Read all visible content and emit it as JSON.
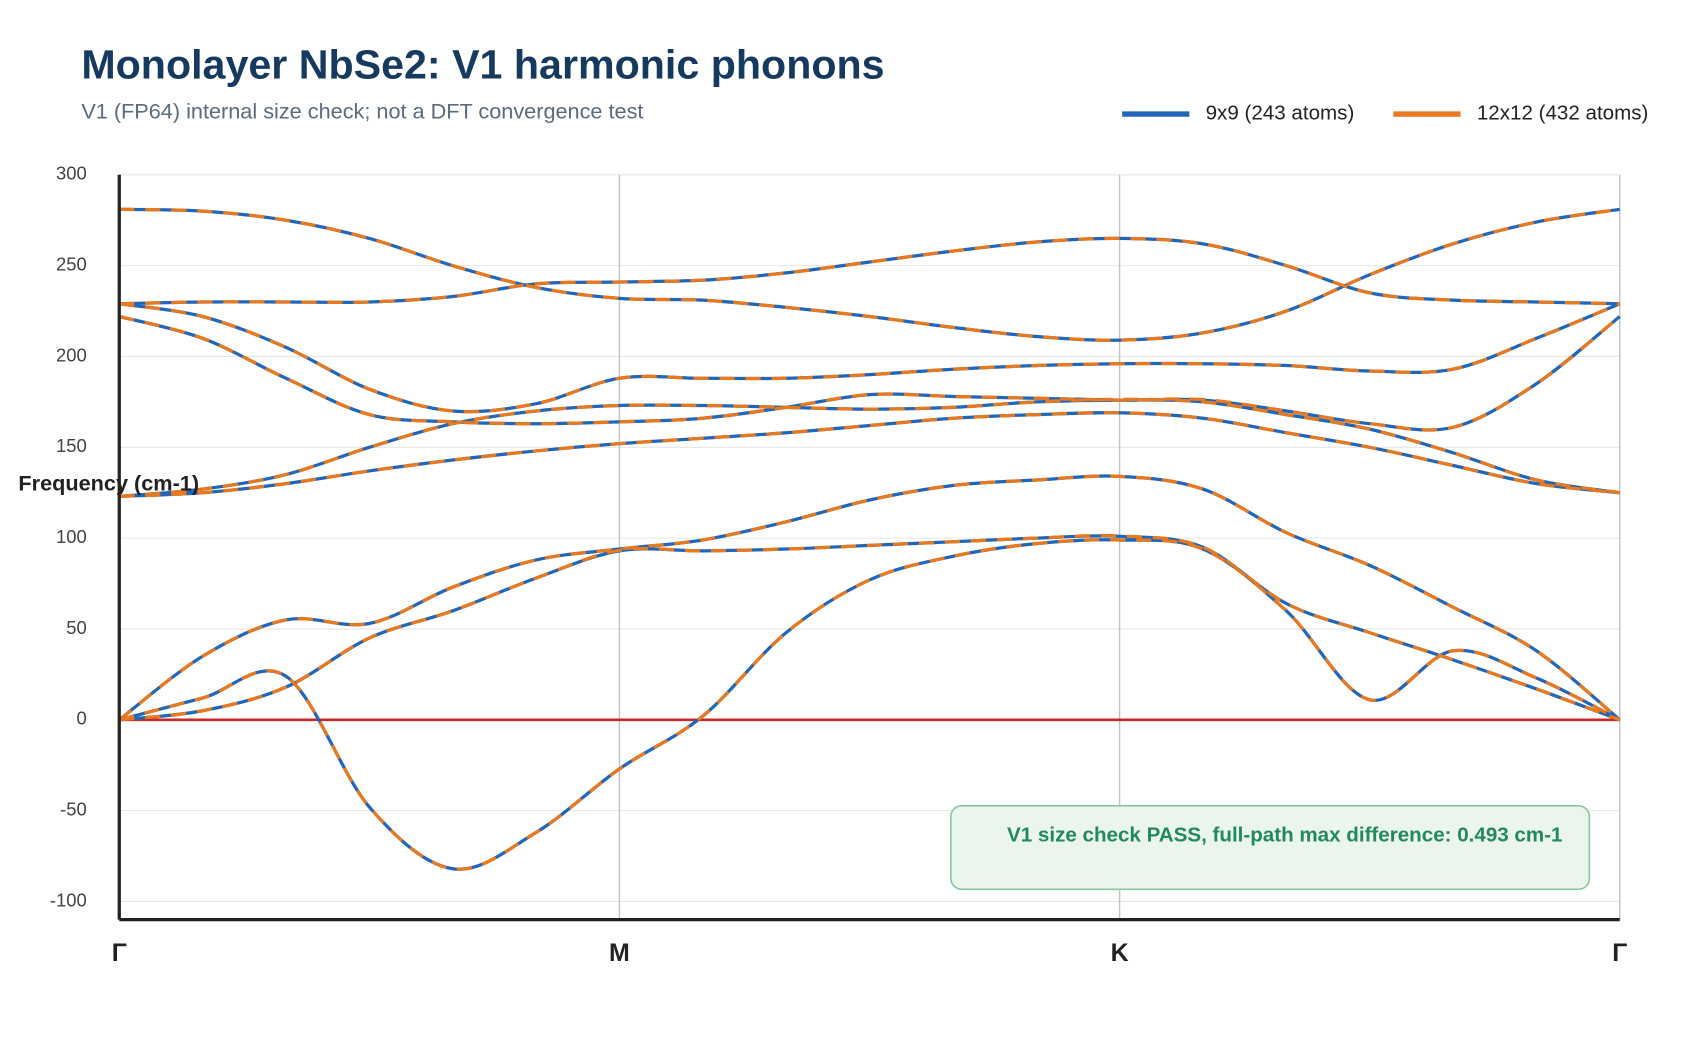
{
  "chart_data": {
    "type": "line",
    "title": "Monolayer NbSe2: V1 harmonic phonons",
    "subtitle": "V1 (FP64) internal size check; not a DFT convergence test",
    "y_label": "Frequency (cm-1)",
    "annotation": "V1 size check PASS, full-path max difference: 0.493 cm-1",
    "x": [
      0,
      1,
      2,
      3,
      4,
      5,
      6,
      7,
      8,
      9,
      10,
      11,
      12,
      13,
      14,
      15,
      16,
      17,
      18
    ],
    "xlim": [
      0,
      18
    ],
    "xticks": [
      {
        "value": 0,
        "label": "Γ"
      },
      {
        "value": 6,
        "label": "M"
      },
      {
        "value": 12,
        "label": "K"
      },
      {
        "value": 18,
        "label": "Γ"
      }
    ],
    "ylim": [
      -110,
      300
    ],
    "yticks": [
      -100,
      -50,
      0,
      50,
      100,
      150,
      200,
      250,
      300
    ],
    "grid": true,
    "legend": "top-right",
    "series": [
      {
        "name": "9x9 (243 atoms)",
        "color": "#2166b8",
        "values": [
          [
            0,
            12,
            24,
            -48,
            -82,
            -62,
            -27,
            2,
            48,
            77,
            90,
            97,
            99,
            94,
            60,
            11,
            38,
            23,
            0
          ],
          [
            0,
            5,
            18,
            45,
            60,
            78,
            93,
            93,
            94,
            96,
            98,
            100,
            101,
            95,
            64,
            48,
            33,
            17,
            0
          ],
          [
            0,
            35,
            55,
            53,
            73,
            88,
            94,
            99,
            109,
            121,
            129,
            132,
            134,
            127,
            103,
            85,
            62,
            38,
            0
          ],
          [
            123,
            125,
            130,
            137,
            143,
            148,
            152,
            155,
            158,
            162,
            166,
            168,
            169,
            166,
            158,
            150,
            140,
            130,
            125
          ],
          [
            123,
            127,
            135,
            150,
            163,
            170,
            173,
            173,
            172,
            171,
            172,
            175,
            176,
            175,
            168,
            160,
            147,
            132,
            125
          ],
          [
            222,
            210,
            188,
            168,
            164,
            163,
            164,
            166,
            172,
            179,
            178,
            177,
            176,
            176,
            170,
            163,
            161,
            185,
            222
          ],
          [
            229,
            222,
            205,
            182,
            170,
            174,
            188,
            188,
            188,
            190,
            193,
            195,
            196,
            196,
            195,
            192,
            193,
            210,
            229
          ],
          [
            229,
            230,
            230,
            230,
            233,
            240,
            241,
            242,
            246,
            252,
            258,
            263,
            265,
            262,
            250,
            235,
            231,
            230,
            229
          ],
          [
            281,
            280,
            275,
            265,
            250,
            238,
            232,
            231,
            227,
            222,
            216,
            211,
            209,
            213,
            225,
            245,
            262,
            274,
            281
          ]
        ]
      },
      {
        "name": "12x12 (432 atoms)",
        "color": "#e8791f",
        "values": [
          [
            0,
            12,
            24,
            -48,
            -82,
            -62,
            -27,
            2,
            48,
            77,
            90,
            97,
            99,
            94,
            60,
            11,
            38,
            23,
            0
          ],
          [
            0,
            5,
            18,
            45,
            60,
            78,
            93.3,
            93,
            94,
            96,
            98,
            100,
            101.2,
            95,
            64,
            48,
            33,
            17,
            0
          ],
          [
            0,
            35,
            55,
            53,
            73,
            88,
            94,
            99,
            109,
            121,
            129,
            132,
            134,
            127,
            103,
            85,
            62,
            38,
            0
          ],
          [
            123,
            125,
            130,
            137,
            143,
            148,
            152,
            155,
            158,
            162,
            166,
            168,
            169,
            166,
            158,
            150,
            140,
            130,
            125
          ],
          [
            123,
            127,
            135,
            150,
            163,
            170,
            173,
            173,
            172,
            171,
            172,
            175,
            176.4,
            175,
            168,
            160,
            147,
            132,
            125
          ],
          [
            222,
            210,
            188,
            168,
            164,
            163,
            164,
            166,
            172,
            179,
            178,
            177,
            176,
            176.3,
            170,
            163,
            161,
            185,
            222
          ],
          [
            229,
            222,
            205,
            182,
            170,
            174,
            188,
            188,
            188,
            190,
            193,
            195,
            196,
            196,
            195,
            192,
            193,
            210,
            229
          ],
          [
            229,
            230,
            230,
            230,
            233,
            240,
            241,
            242,
            246,
            252,
            258,
            263,
            265,
            262,
            250,
            235,
            231,
            230,
            229
          ],
          [
            281,
            280,
            275,
            265,
            250,
            238,
            232,
            231,
            227,
            222,
            216,
            211,
            209,
            213,
            225,
            245,
            262,
            274,
            281
          ]
        ]
      }
    ]
  }
}
